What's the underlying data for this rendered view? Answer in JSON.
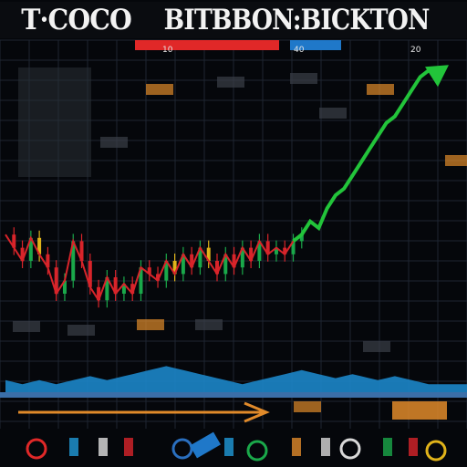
{
  "header": {
    "title_part1": "T·COCO",
    "title_part2": "BITBBON:BICKTON"
  },
  "colors": {
    "background": "#05070b",
    "grid": "#1e2632",
    "up": "#1aa84a",
    "down": "#d8242a",
    "neutral": "#e0b31a",
    "trend": "#22c43a",
    "mountain": "#1c86c8",
    "accent_red": "#e02828",
    "accent_blue": "#1f78c9",
    "badge_orange": "#e08a2a"
  },
  "chart_data": {
    "type": "line",
    "title": "T·COCO BITBBON:BICKTON",
    "xlabel": "",
    "ylabel": "",
    "grid": true,
    "x": [
      0,
      1,
      2,
      3,
      4,
      5,
      6,
      7,
      8,
      9,
      10,
      11,
      12,
      13,
      14,
      15,
      16,
      17,
      18,
      19,
      20,
      21,
      22,
      23,
      24,
      25,
      26,
      27,
      28,
      29,
      30,
      31,
      32,
      33,
      34,
      35,
      36,
      37,
      38,
      39,
      40,
      41,
      42,
      43,
      44,
      45,
      46,
      47,
      48,
      49,
      50
    ],
    "xlim": [
      0,
      50
    ],
    "ylim": [
      0,
      100
    ],
    "series": [
      {
        "values": [
          48,
          44,
          40,
          47,
          42,
          38,
          30,
          34,
          46,
          40,
          32,
          28,
          35,
          30,
          33,
          30,
          38,
          36,
          34,
          40,
          36,
          42,
          38,
          44,
          40,
          36,
          42,
          38,
          44,
          40,
          46,
          42,
          44,
          42,
          46,
          48,
          52,
          50,
          56,
          60,
          62,
          66,
          70,
          74,
          78,
          82,
          84,
          88,
          92,
          96,
          98
        ]
      },
      {
        "values": [
          26,
          25,
          24,
          25,
          26,
          25,
          24,
          25,
          26,
          27,
          28,
          27,
          26,
          27,
          28,
          29,
          30,
          31,
          32,
          33,
          32,
          31,
          30,
          29,
          28,
          27,
          26,
          25,
          24,
          25,
          26,
          27,
          28,
          29,
          30,
          31,
          30,
          29,
          28,
          27,
          28,
          29,
          28,
          27,
          26,
          27,
          28,
          27,
          26,
          25,
          24
        ]
      }
    ],
    "arrow_badges": [
      "10",
      "40",
      "20"
    ]
  }
}
